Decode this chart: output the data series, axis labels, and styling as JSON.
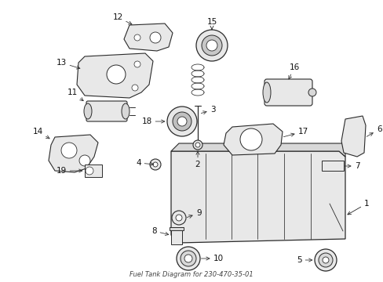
{
  "title": "Fuel Tank Diagram for 230-470-35-01",
  "bg_color": "#ffffff",
  "gray": "#2a2a2a",
  "lightgray": "#d8d8d8",
  "midgray": "#e8e8e8"
}
